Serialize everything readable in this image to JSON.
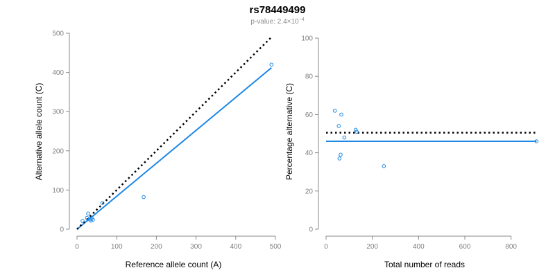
{
  "header": {
    "title": "rs78449499",
    "subtitle_prefix": "p-value: 2.4×10",
    "subtitle_exponent": "−4"
  },
  "colors": {
    "fit": "#1e88e5",
    "reference": "#000000",
    "axis": "#888888"
  },
  "chart_data": [
    {
      "type": "scatter",
      "xlabel": "Reference allele count (A)",
      "ylabel": "Alternative allele count (C)",
      "xlim": [
        0,
        500
      ],
      "ylim": [
        0,
        500
      ],
      "xticks": [
        0,
        100,
        200,
        300,
        400,
        500
      ],
      "yticks": [
        0,
        100,
        200,
        300,
        400,
        500
      ],
      "grid": false,
      "points": [
        {
          "x": 14,
          "y": 21
        },
        {
          "x": 25,
          "y": 29
        },
        {
          "x": 28,
          "y": 40
        },
        {
          "x": 32,
          "y": 25
        },
        {
          "x": 35,
          "y": 22
        },
        {
          "x": 37,
          "y": 28
        },
        {
          "x": 40,
          "y": 24
        },
        {
          "x": 64,
          "y": 67
        },
        {
          "x": 168,
          "y": 82
        },
        {
          "x": 490,
          "y": 420
        }
      ],
      "lines": [
        {
          "role": "fit",
          "x": [
            0,
            490
          ],
          "y": [
            0,
            412
          ]
        },
        {
          "role": "reference",
          "x": [
            0,
            490
          ],
          "y": [
            0,
            490
          ]
        }
      ]
    },
    {
      "type": "scatter",
      "xlabel": "Total number of reads",
      "ylabel": "Percentage alternative (C)",
      "xlim": [
        0,
        900
      ],
      "ylim": [
        0,
        100
      ],
      "xticks": [
        0,
        200,
        400,
        600,
        800
      ],
      "yticks": [
        0,
        20,
        40,
        60,
        80,
        100
      ],
      "grid": false,
      "points": [
        {
          "x": 38,
          "y": 62
        },
        {
          "x": 55,
          "y": 54
        },
        {
          "x": 58,
          "y": 37
        },
        {
          "x": 63,
          "y": 39
        },
        {
          "x": 66,
          "y": 60
        },
        {
          "x": 79,
          "y": 48
        },
        {
          "x": 128,
          "y": 52
        },
        {
          "x": 132,
          "y": 51
        },
        {
          "x": 250,
          "y": 33
        },
        {
          "x": 910,
          "y": 46
        }
      ],
      "lines": [
        {
          "role": "fit",
          "x": [
            0,
            910
          ],
          "y": [
            46,
            46
          ]
        },
        {
          "role": "reference",
          "x": [
            0,
            910
          ],
          "y": [
            50.5,
            50.5
          ]
        }
      ]
    }
  ]
}
